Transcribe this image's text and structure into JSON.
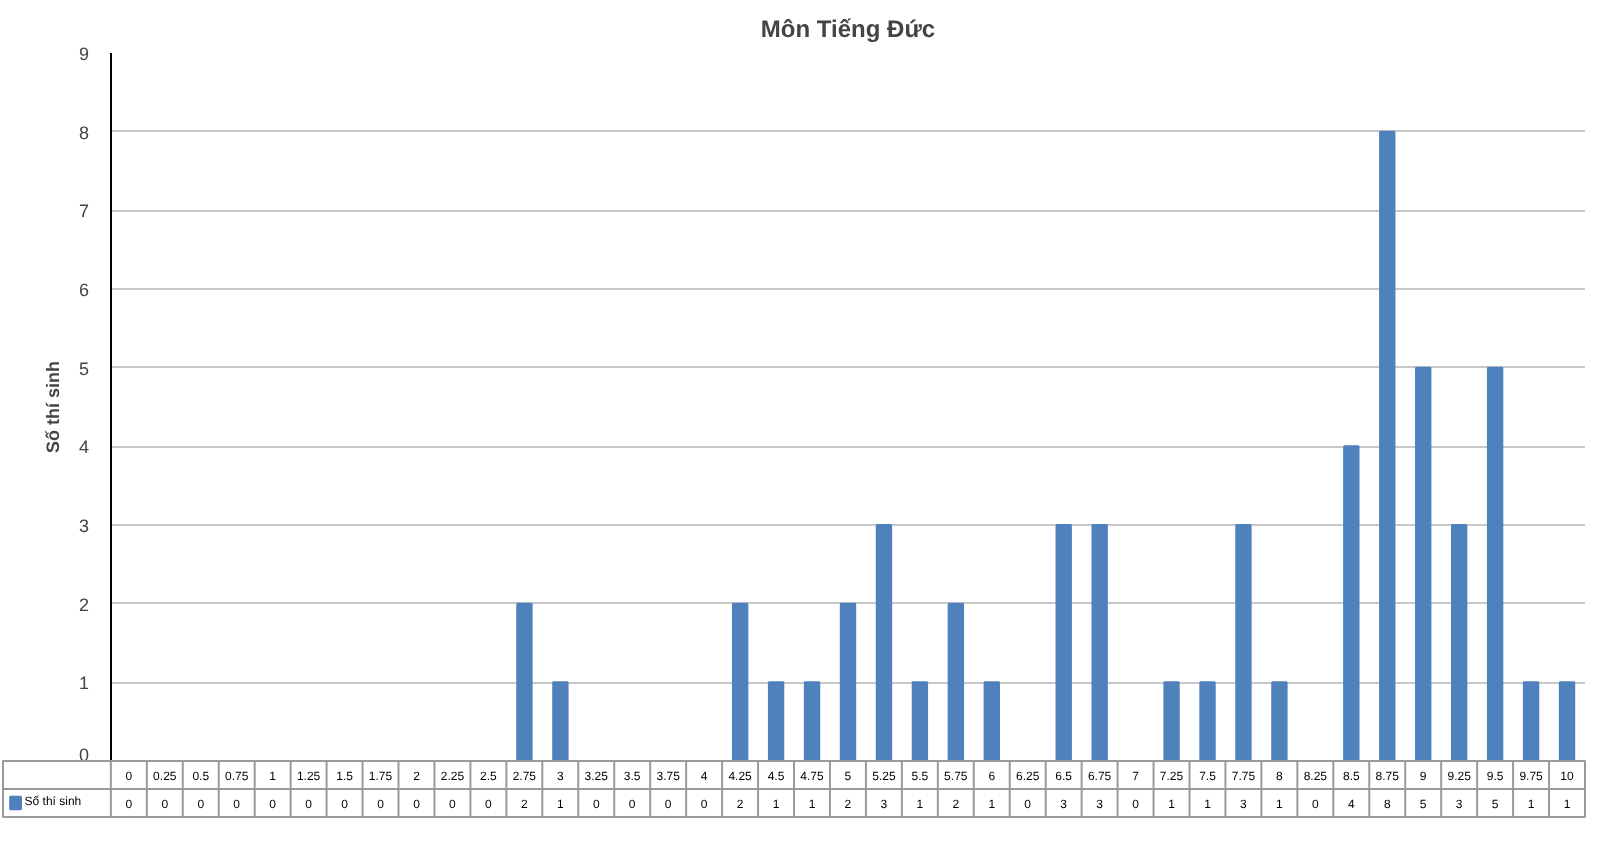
{
  "chart_data": {
    "type": "bar",
    "title": "Môn Tiếng Đức",
    "ylabel": "Số thí sinh",
    "categories": [
      "0",
      "0.25",
      "0.5",
      "0.75",
      "1",
      "1.25",
      "1.5",
      "1.75",
      "2",
      "2.25",
      "2.5",
      "2.75",
      "3",
      "3.25",
      "3.5",
      "3.75",
      "4",
      "4.25",
      "4.5",
      "4.75",
      "5",
      "5.25",
      "5.5",
      "5.75",
      "6",
      "6.25",
      "6.5",
      "6.75",
      "7",
      "7.25",
      "7.5",
      "7.75",
      "8",
      "8.25",
      "8.5",
      "8.75",
      "9",
      "9.25",
      "9.5",
      "9.75",
      "10"
    ],
    "series": [
      {
        "name": "Số thí sinh",
        "color": "#4f81bd",
        "values": [
          0,
          0,
          0,
          0,
          0,
          0,
          0,
          0,
          0,
          0,
          0,
          2,
          1,
          0,
          0,
          0,
          0,
          2,
          1,
          1,
          2,
          3,
          1,
          2,
          1,
          0,
          3,
          3,
          0,
          1,
          1,
          3,
          1,
          0,
          4,
          8,
          5,
          3,
          5,
          1,
          1
        ]
      }
    ],
    "ylim": [
      0,
      9
    ],
    "yticks": [
      0,
      1,
      2,
      3,
      4,
      5,
      6,
      7,
      8,
      9
    ],
    "grid": "y",
    "data_labels": true
  }
}
